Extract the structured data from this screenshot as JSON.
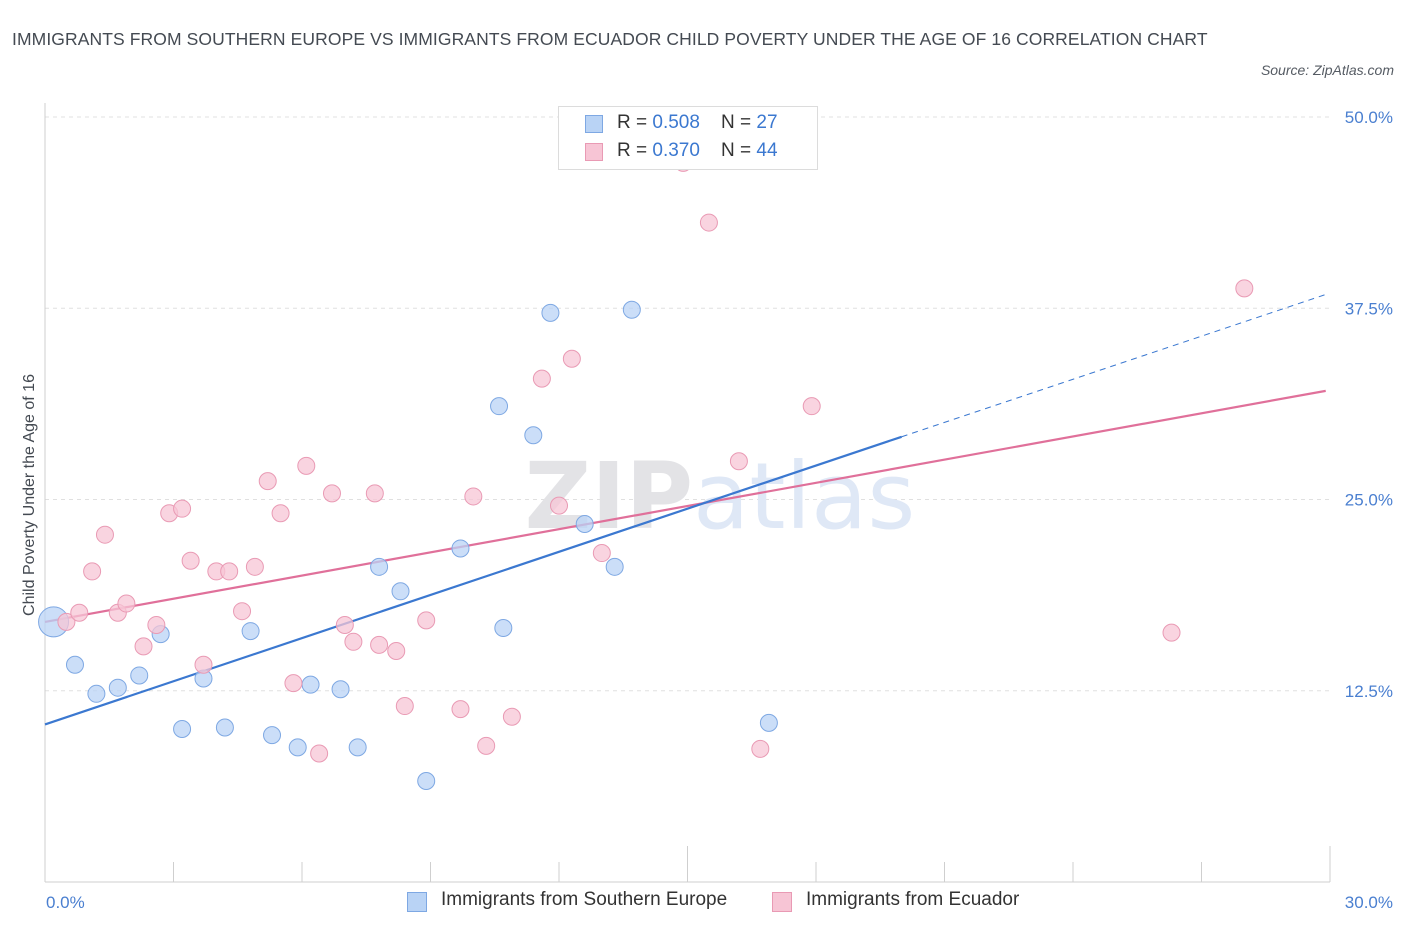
{
  "title": "IMMIGRANTS FROM SOUTHERN EUROPE VS IMMIGRANTS FROM ECUADOR CHILD POVERTY UNDER THE AGE OF 16 CORRELATION CHART",
  "source": "Source: ZipAtlas.com",
  "watermark": "ZIPatlas",
  "legend": {
    "rows": [
      {
        "r_label": "R = ",
        "r_value": "0.508",
        "n_label": "N = ",
        "n_value": "27"
      },
      {
        "r_label": "R = ",
        "r_value": "0.370",
        "n_label": "N = ",
        "n_value": "44"
      }
    ]
  },
  "colors": {
    "series1_fill": "#b9d3f5",
    "series1_stroke": "#7ea8e3",
    "series1_line": "#3b78d0",
    "series2_fill": "#f7c5d5",
    "series2_stroke": "#e99ab4",
    "series2_line": "#e0709a",
    "tick_text": "#4a7fd0",
    "grid": "#e0e0e0"
  },
  "chart_data": {
    "type": "scatter",
    "title": "IMMIGRANTS FROM SOUTHERN EUROPE VS IMMIGRANTS FROM ECUADOR CHILD POVERTY UNDER THE AGE OF 16 CORRELATION CHART",
    "xlabel": "",
    "ylabel": "Child Poverty Under the Age of 16",
    "xlim": [
      0,
      30
    ],
    "ylim": [
      0,
      50
    ],
    "x_tick_labels": [
      "0.0%",
      "30.0%"
    ],
    "y_ticks": [
      12.5,
      25.0,
      37.5,
      50.0
    ],
    "y_tick_labels": [
      "12.5%",
      "25.0%",
      "37.5%",
      "50.0%"
    ],
    "grid": true,
    "legend_position": "top-center",
    "series": [
      {
        "name": "Immigrants from Southern Europe",
        "r": 0.508,
        "n": 27,
        "trend": {
          "x": [
            0.0,
            20.0
          ],
          "y": [
            10.3,
            29.1
          ]
        },
        "trend_extension": {
          "x": [
            20.0,
            29.9
          ],
          "y": [
            29.1,
            38.4
          ]
        },
        "points": [
          [
            0.2,
            17.0
          ],
          [
            0.7,
            14.2
          ],
          [
            1.2,
            12.3
          ],
          [
            1.7,
            12.7
          ],
          [
            2.2,
            13.5
          ],
          [
            2.7,
            16.2
          ],
          [
            3.2,
            10.0
          ],
          [
            3.7,
            13.3
          ],
          [
            4.2,
            10.1
          ],
          [
            4.8,
            16.4
          ],
          [
            5.3,
            9.6
          ],
          [
            5.9,
            8.8
          ],
          [
            6.2,
            12.9
          ],
          [
            6.9,
            12.6
          ],
          [
            7.3,
            8.8
          ],
          [
            7.8,
            20.6
          ],
          [
            8.3,
            19.0
          ],
          [
            8.9,
            6.6
          ],
          [
            9.7,
            21.8
          ],
          [
            10.6,
            31.1
          ],
          [
            10.7,
            16.6
          ],
          [
            11.4,
            29.2
          ],
          [
            11.8,
            37.2
          ],
          [
            12.6,
            23.4
          ],
          [
            13.3,
            20.6
          ],
          [
            13.7,
            37.4
          ],
          [
            16.9,
            10.4
          ]
        ]
      },
      {
        "name": "Immigrants from Ecuador",
        "r": 0.37,
        "n": 44,
        "trend": {
          "x": [
            0.0,
            29.9
          ],
          "y": [
            17.0,
            32.1
          ]
        },
        "points": [
          [
            0.5,
            17.0
          ],
          [
            0.8,
            17.6
          ],
          [
            1.1,
            20.3
          ],
          [
            1.4,
            22.7
          ],
          [
            1.7,
            17.6
          ],
          [
            1.9,
            18.2
          ],
          [
            2.3,
            15.4
          ],
          [
            2.6,
            16.8
          ],
          [
            2.9,
            24.1
          ],
          [
            3.2,
            24.4
          ],
          [
            3.4,
            21.0
          ],
          [
            3.7,
            14.2
          ],
          [
            4.0,
            20.3
          ],
          [
            4.3,
            20.3
          ],
          [
            4.6,
            17.7
          ],
          [
            4.9,
            20.6
          ],
          [
            5.2,
            26.2
          ],
          [
            5.5,
            24.1
          ],
          [
            5.8,
            13.0
          ],
          [
            6.1,
            27.2
          ],
          [
            6.4,
            8.4
          ],
          [
            6.7,
            25.4
          ],
          [
            7.0,
            16.8
          ],
          [
            7.2,
            15.7
          ],
          [
            7.7,
            25.4
          ],
          [
            7.8,
            15.5
          ],
          [
            8.2,
            15.1
          ],
          [
            8.4,
            11.5
          ],
          [
            8.9,
            17.1
          ],
          [
            9.7,
            11.3
          ],
          [
            10.0,
            25.2
          ],
          [
            10.3,
            8.9
          ],
          [
            10.9,
            10.8
          ],
          [
            11.6,
            32.9
          ],
          [
            12.0,
            24.6
          ],
          [
            12.3,
            34.2
          ],
          [
            13.0,
            21.5
          ],
          [
            14.9,
            47.0
          ],
          [
            15.5,
            43.1
          ],
          [
            16.2,
            27.5
          ],
          [
            16.7,
            8.7
          ],
          [
            17.9,
            31.1
          ],
          [
            26.3,
            16.3
          ],
          [
            28.0,
            38.8
          ]
        ]
      }
    ]
  },
  "bottom_legend": [
    {
      "label": "Immigrants from Southern Europe"
    },
    {
      "label": "Immigrants from Ecuador"
    }
  ]
}
